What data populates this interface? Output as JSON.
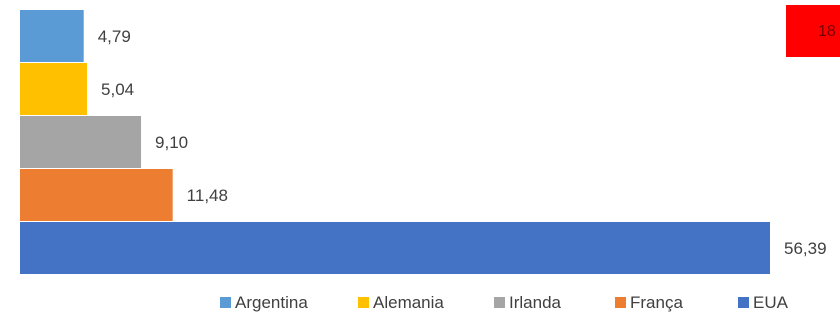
{
  "chart_data": {
    "type": "bar",
    "orientation": "horizontal",
    "series": [
      {
        "name": "Argentina",
        "value": 4.79,
        "label": "4,79",
        "color": "#5B9BD5"
      },
      {
        "name": "Alemania",
        "value": 5.04,
        "label": "5,04",
        "color": "#FFC000"
      },
      {
        "name": "Irlanda",
        "value": 9.1,
        "label": "9,10",
        "color": "#A5A5A5"
      },
      {
        "name": "França",
        "value": 11.48,
        "label": "11,48",
        "color": "#ED7D31"
      },
      {
        "name": "EUA",
        "value": 56.39,
        "label": "56,39",
        "color": "#4472C4"
      }
    ],
    "badge": {
      "text": "18",
      "color": "#FF0000"
    },
    "legend_position": "bottom",
    "grid": false,
    "xlim": [
      0,
      56.39
    ]
  }
}
